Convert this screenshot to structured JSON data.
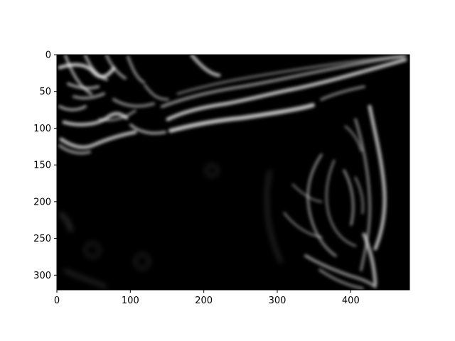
{
  "chart_data": {
    "type": "heatmap",
    "title": "",
    "xlabel": "",
    "ylabel": "",
    "colormap": "gray",
    "description_kind": "edge-magnitude image",
    "xlim": [
      0,
      480
    ],
    "ylim": [
      320,
      0
    ],
    "x_ticks": [
      0,
      100,
      200,
      300,
      400
    ],
    "y_ticks": [
      0,
      50,
      100,
      150,
      200,
      250,
      300
    ],
    "x_tick_labels": [
      "0",
      "100",
      "200",
      "300",
      "400"
    ],
    "y_tick_labels": [
      "0",
      "50",
      "100",
      "150",
      "200",
      "250",
      "300"
    ],
    "colors": {
      "background": "#000000",
      "edge": "#ffffff",
      "axis": "#000000"
    }
  }
}
